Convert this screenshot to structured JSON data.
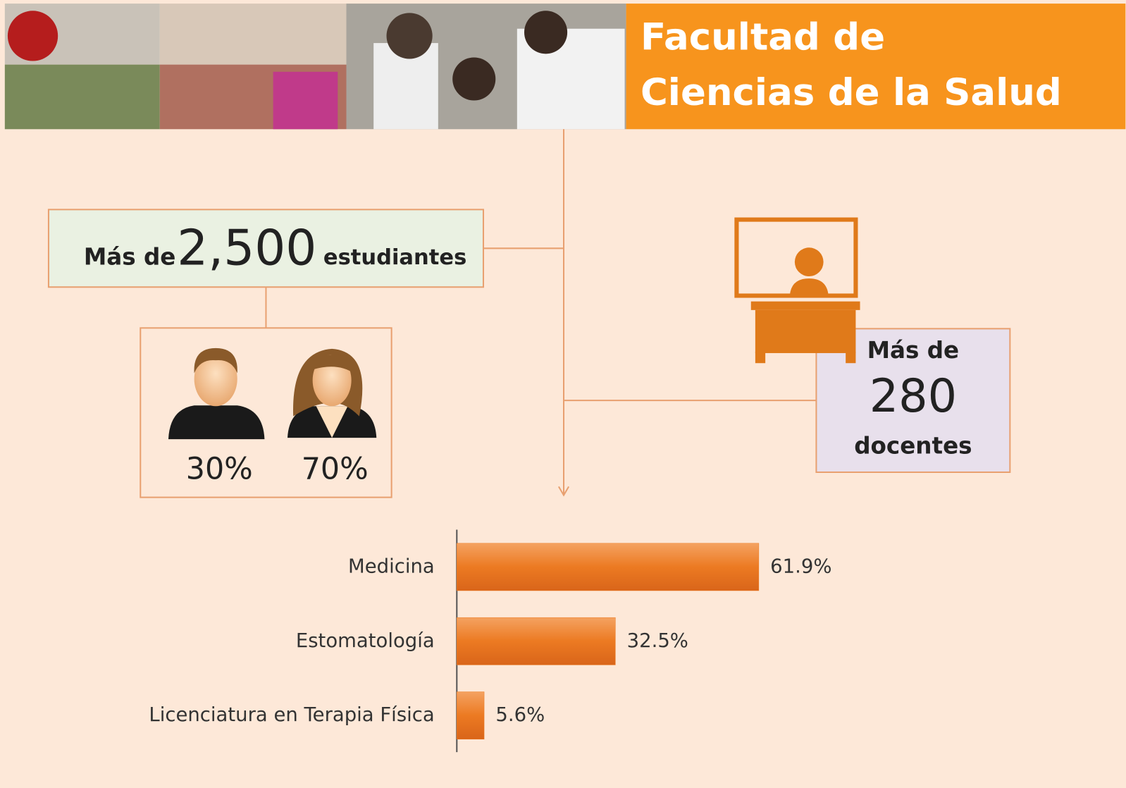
{
  "header": {
    "title_line1": "Facultad de",
    "title_line2": "Ciencias de la Salud"
  },
  "students": {
    "prefix": "Más de",
    "number": "2,500",
    "suffix": "estudiantes",
    "male": "30%",
    "female": "70%"
  },
  "teachers": {
    "prefix": "Más de",
    "number": "280",
    "suffix": "docentes"
  },
  "chart_data": {
    "type": "bar",
    "orientation": "horizontal",
    "categories": [
      "Medicina",
      "Estomatología",
      "Licenciatura en Terapia Física"
    ],
    "values": [
      61.9,
      32.5,
      5.6
    ],
    "value_labels": [
      "61.9%",
      "32.5%",
      "5.6%"
    ],
    "color": "#ec7a22",
    "xlim": [
      0,
      100
    ]
  }
}
